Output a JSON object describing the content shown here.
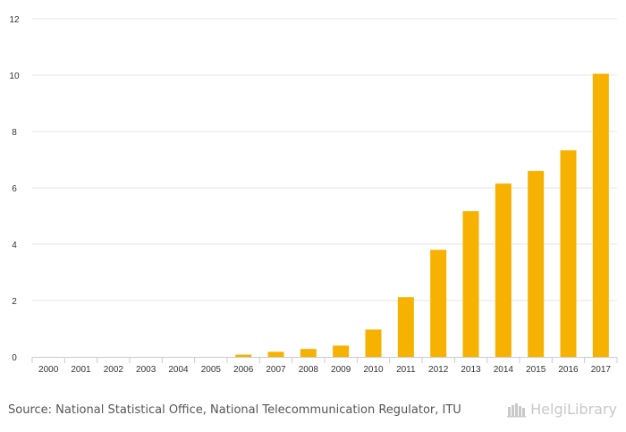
{
  "chart_data": {
    "type": "bar",
    "title": "",
    "xlabel": "",
    "ylabel": "",
    "categories": [
      "2000",
      "2001",
      "2002",
      "2003",
      "2004",
      "2005",
      "2006",
      "2007",
      "2008",
      "2009",
      "2010",
      "2011",
      "2012",
      "2013",
      "2014",
      "2015",
      "2016",
      "2017"
    ],
    "values": [
      0,
      0,
      0,
      0,
      0,
      0,
      0.08,
      0.18,
      0.28,
      0.4,
      0.97,
      2.12,
      3.8,
      5.17,
      6.15,
      6.6,
      7.33,
      10.05
    ],
    "ylim": [
      0,
      12
    ],
    "yticks": [
      0,
      2,
      4,
      6,
      8,
      10,
      12
    ],
    "grid": true,
    "bar_color": "#f7b200",
    "grid_color": "#e6e6e6"
  },
  "footer": {
    "source": "Source: National Statistical Office, National Telecommunication Regulator, ITU",
    "brand": "HelgiLibrary"
  }
}
